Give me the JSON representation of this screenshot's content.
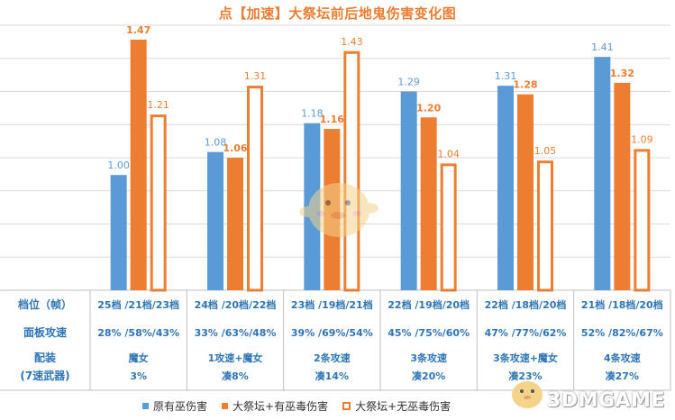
{
  "chart_data": {
    "type": "bar",
    "title": "点【加速】大祭坛前后地鬼伤害变化图",
    "ylim": [
      0.6,
      1.52
    ],
    "grid": true,
    "legend_position": "bottom",
    "series": [
      {
        "name": "原有巫伤害",
        "style": "filled",
        "color": "#5B9BD5",
        "label_bold": false,
        "values": [
          1.0,
          1.08,
          1.18,
          1.29,
          1.31,
          1.41
        ]
      },
      {
        "name": "大祭坛+有巫毒伤害",
        "style": "filled",
        "color": "#ED7D31",
        "label_bold": true,
        "values": [
          1.47,
          1.06,
          1.16,
          1.2,
          1.28,
          1.32
        ]
      },
      {
        "name": "大祭坛+无巫毒伤害",
        "style": "outline",
        "color": "#ED7D31",
        "label_bold": false,
        "values": [
          1.21,
          1.31,
          1.43,
          1.04,
          1.05,
          1.09
        ]
      }
    ],
    "table": {
      "row_headers": [
        "档位（帧）",
        "面板攻速",
        "配装\n(7速武器)"
      ],
      "columns": [
        [
          "25档 /21档/23档",
          "28% /58%/43%",
          "魔女\n3%"
        ],
        [
          "24档 /20档/22档",
          "33% /63%/48%",
          "1攻速+魔女\n凑8%"
        ],
        [
          "23档 /19档/21档",
          "39% /69%/54%",
          "2条攻速\n凑14%"
        ],
        [
          "22档 /19档/20档",
          "45% /75%/60%",
          "3条攻速\n凑20%"
        ],
        [
          "22档 /18档/20档",
          "47% /77%/62%",
          "3条攻速+魔女\n凑23%"
        ],
        [
          "21档 /18档/20档",
          "52% /82%/67%",
          "4条攻速\n凑27%"
        ]
      ]
    }
  },
  "watermark": "3DMGAME"
}
